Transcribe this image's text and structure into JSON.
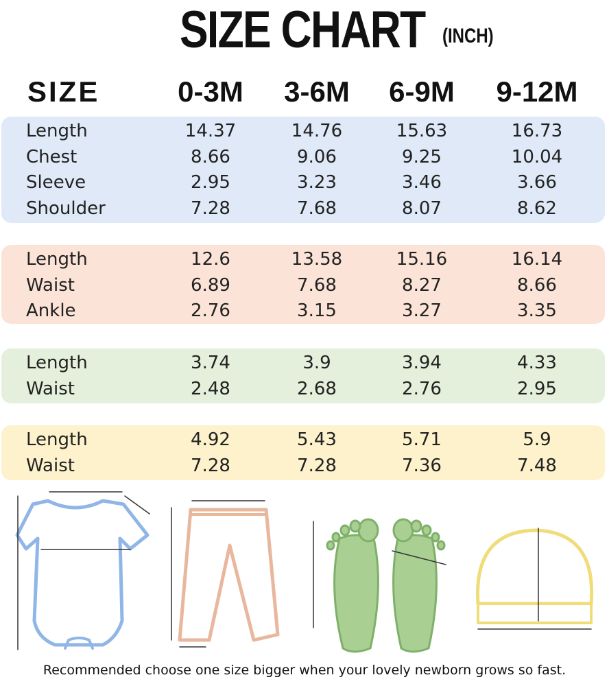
{
  "header": {
    "title": "SIZE CHART",
    "unit": "(INCH)"
  },
  "table": {
    "columns": [
      "SIZE",
      "0-3M",
      "3-6M",
      "6-9M",
      "9-12M"
    ],
    "groups": [
      {
        "rows": [
          [
            "Length",
            "14.37",
            "14.76",
            "15.63",
            "16.73"
          ],
          [
            "Chest",
            "8.66",
            "9.06",
            "9.25",
            "10.04"
          ],
          [
            "Sleeve",
            "2.95",
            "3.23",
            "3.46",
            "3.66"
          ],
          [
            "Shoulder",
            "7.28",
            "7.68",
            "8.07",
            "8.62"
          ]
        ]
      },
      {
        "rows": [
          [
            "Length",
            "12.6",
            "13.58",
            "15.16",
            "16.14"
          ],
          [
            "Waist",
            "6.89",
            "7.68",
            "8.27",
            "8.66"
          ],
          [
            "Ankle",
            "2.76",
            "3.15",
            "3.27",
            "3.35"
          ]
        ]
      },
      {
        "rows": [
          [
            "Length",
            "3.74",
            "3.9",
            "3.94",
            "4.33"
          ],
          [
            "Waist",
            "2.48",
            "2.68",
            "2.76",
            "2.95"
          ]
        ]
      },
      {
        "rows": [
          [
            "Length",
            "4.92",
            "5.43",
            "5.71",
            "5.9"
          ],
          [
            "Waist",
            "7.28",
            "7.28",
            "7.36",
            "7.48"
          ]
        ]
      }
    ]
  },
  "footer": {
    "note": "Recommended choose one size bigger when your lovely newborn grows so fast."
  }
}
